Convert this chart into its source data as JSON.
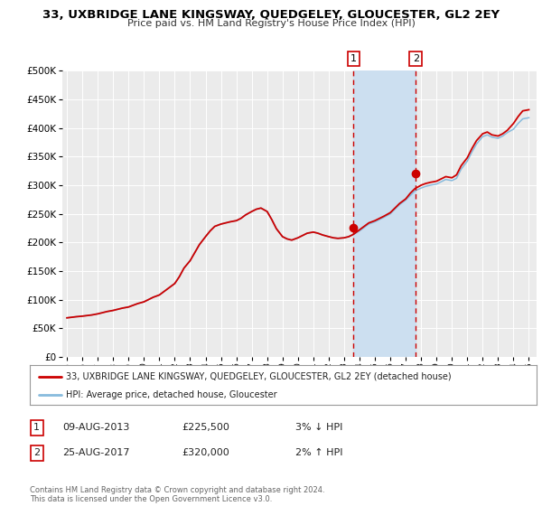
{
  "title": "33, UXBRIDGE LANE KINGSWAY, QUEDGELEY, GLOUCESTER, GL2 2EY",
  "subtitle": "Price paid vs. HM Land Registry's House Price Index (HPI)",
  "legend_label_red": "33, UXBRIDGE LANE KINGSWAY, QUEDGELEY, GLOUCESTER, GL2 2EY (detached house)",
  "legend_label_blue": "HPI: Average price, detached house, Gloucester",
  "annotation1_date": "09-AUG-2013",
  "annotation1_price": "£225,500",
  "annotation1_hpi": "3% ↓ HPI",
  "annotation1_year": 2013.62,
  "annotation1_value": 225500,
  "annotation2_date": "25-AUG-2017",
  "annotation2_price": "£320,000",
  "annotation2_hpi": "2% ↑ HPI",
  "annotation2_year": 2017.65,
  "annotation2_value": 320000,
  "footer": "Contains HM Land Registry data © Crown copyright and database right 2024.\nThis data is licensed under the Open Government Licence v3.0.",
  "ylim": [
    0,
    500000
  ],
  "yticks": [
    0,
    50000,
    100000,
    150000,
    200000,
    250000,
    300000,
    350000,
    400000,
    450000,
    500000
  ],
  "xlim_start": 1994.7,
  "xlim_end": 2025.5,
  "background_color": "#ffffff",
  "plot_bg_color": "#ebebeb",
  "shade_start": 2013.62,
  "shade_end": 2017.65,
  "shade_color": "#ccdff0",
  "red_color": "#cc0000",
  "blue_color": "#88bbdd",
  "grid_color": "#ffffff",
  "years_hpi": [
    1995.0,
    1995.3,
    1995.6,
    1996.0,
    1996.3,
    1996.6,
    1997.0,
    1997.3,
    1997.6,
    1998.0,
    1998.3,
    1998.6,
    1999.0,
    1999.3,
    1999.6,
    2000.0,
    2000.3,
    2000.6,
    2001.0,
    2001.3,
    2001.6,
    2002.0,
    2002.3,
    2002.6,
    2003.0,
    2003.3,
    2003.6,
    2004.0,
    2004.3,
    2004.6,
    2005.0,
    2005.3,
    2005.6,
    2006.0,
    2006.3,
    2006.6,
    2007.0,
    2007.3,
    2007.6,
    2008.0,
    2008.3,
    2008.6,
    2009.0,
    2009.3,
    2009.6,
    2010.0,
    2010.3,
    2010.6,
    2011.0,
    2011.3,
    2011.6,
    2012.0,
    2012.3,
    2012.6,
    2013.0,
    2013.3,
    2013.6,
    2014.0,
    2014.3,
    2014.6,
    2015.0,
    2015.3,
    2015.6,
    2016.0,
    2016.3,
    2016.6,
    2017.0,
    2017.3,
    2017.6,
    2018.0,
    2018.3,
    2018.6,
    2019.0,
    2019.3,
    2019.6,
    2020.0,
    2020.3,
    2020.6,
    2021.0,
    2021.3,
    2021.6,
    2022.0,
    2022.3,
    2022.6,
    2023.0,
    2023.3,
    2023.6,
    2024.0,
    2024.3,
    2024.6,
    2025.0
  ],
  "hpi_values": [
    68000,
    69000,
    70000,
    71000,
    72000,
    73000,
    75000,
    77000,
    79000,
    81000,
    83000,
    85000,
    87000,
    90000,
    93000,
    96000,
    100000,
    104000,
    108000,
    114000,
    120000,
    128000,
    140000,
    155000,
    168000,
    182000,
    196000,
    210000,
    220000,
    228000,
    232000,
    234000,
    236000,
    238000,
    242000,
    248000,
    254000,
    258000,
    260000,
    254000,
    240000,
    224000,
    210000,
    206000,
    204000,
    208000,
    212000,
    216000,
    218000,
    216000,
    213000,
    210000,
    208000,
    207000,
    208000,
    210000,
    214000,
    220000,
    226000,
    232000,
    236000,
    240000,
    244000,
    250000,
    258000,
    266000,
    274000,
    282000,
    290000,
    295000,
    298000,
    300000,
    302000,
    306000,
    310000,
    308000,
    312000,
    328000,
    342000,
    358000,
    372000,
    385000,
    388000,
    384000,
    382000,
    386000,
    392000,
    398000,
    408000,
    416000,
    418000
  ],
  "red_values": [
    68000,
    69000,
    70000,
    71000,
    72000,
    73000,
    75000,
    77000,
    79000,
    81000,
    83000,
    85000,
    87000,
    90000,
    93000,
    96000,
    100000,
    104000,
    108000,
    114000,
    120000,
    128000,
    140000,
    155000,
    168000,
    182000,
    196000,
    210000,
    220000,
    228000,
    232000,
    234000,
    236000,
    238000,
    242000,
    248000,
    254000,
    258000,
    260000,
    254000,
    240000,
    224000,
    210000,
    206000,
    204000,
    208000,
    212000,
    216000,
    218000,
    216000,
    213000,
    210000,
    208000,
    207000,
    208000,
    210000,
    214000,
    222000,
    228000,
    234000,
    238000,
    242000,
    246000,
    252000,
    260000,
    268000,
    276000,
    286000,
    294000,
    300000,
    303000,
    305000,
    307000,
    311000,
    315000,
    313000,
    318000,
    334000,
    348000,
    364000,
    378000,
    390000,
    393000,
    388000,
    386000,
    390000,
    396000,
    408000,
    420000,
    430000,
    432000
  ]
}
